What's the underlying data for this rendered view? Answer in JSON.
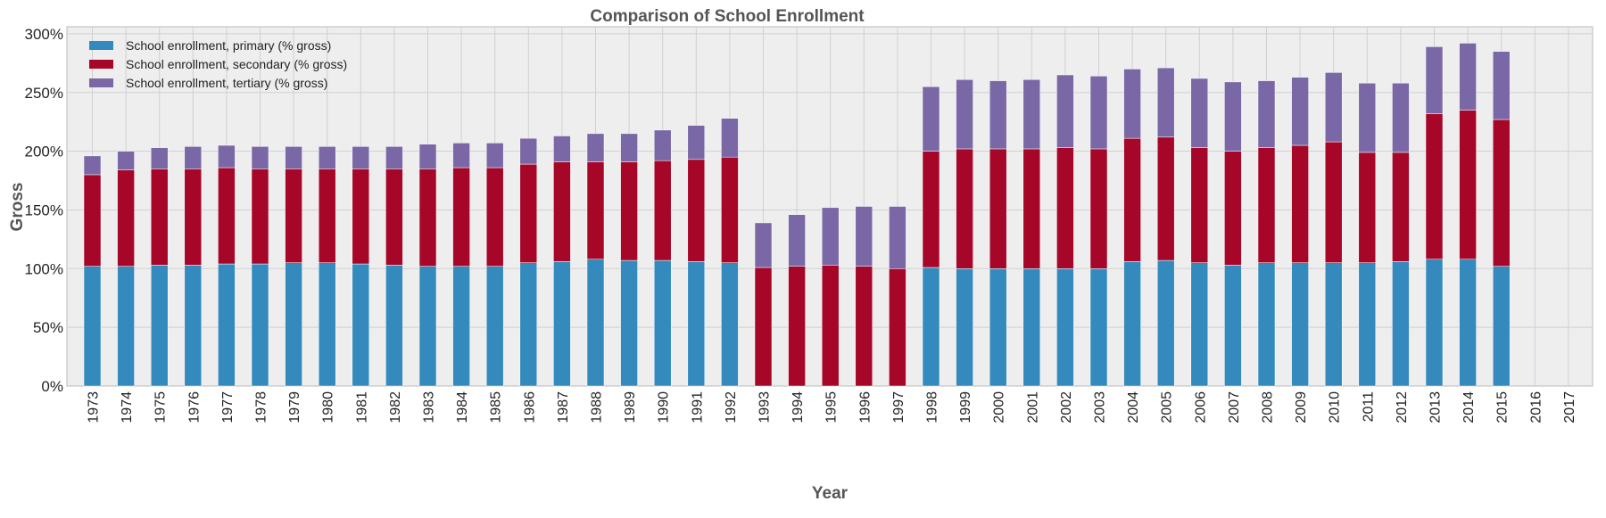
{
  "chart_data": {
    "type": "bar",
    "stacked": true,
    "title": "Comparison of School Enrollment",
    "xlabel": "Year",
    "ylabel": "Gross",
    "ylim": [
      0,
      306
    ],
    "yticks": [
      0,
      50,
      100,
      150,
      200,
      250,
      300
    ],
    "ytick_suffix": "%",
    "grid": true,
    "legend_position": "top-left",
    "categories": [
      "1973",
      "1974",
      "1975",
      "1976",
      "1977",
      "1978",
      "1979",
      "1980",
      "1981",
      "1982",
      "1983",
      "1984",
      "1985",
      "1986",
      "1987",
      "1988",
      "1989",
      "1990",
      "1991",
      "1992",
      "1993",
      "1994",
      "1995",
      "1996",
      "1997",
      "1998",
      "1999",
      "2000",
      "2001",
      "2002",
      "2003",
      "2004",
      "2005",
      "2006",
      "2007",
      "2008",
      "2009",
      "2010",
      "2011",
      "2012",
      "2013",
      "2014",
      "2015",
      "2016",
      "2017"
    ],
    "series": [
      {
        "name": "School enrollment, primary (% gross)",
        "color": "#348ABD",
        "values": [
          102,
          102,
          103,
          103,
          104,
          104,
          105,
          105,
          104,
          103,
          102,
          102,
          102,
          105,
          106,
          108,
          107,
          107,
          106,
          105,
          0,
          0,
          0,
          0,
          0,
          101,
          100,
          100,
          100,
          100,
          100,
          106,
          107,
          105,
          103,
          105,
          105,
          105,
          105,
          106,
          108,
          108,
          102,
          0,
          0
        ]
      },
      {
        "name": "School enrollment, secondary (% gross)",
        "color": "#A60628",
        "values": [
          78,
          82,
          82,
          82,
          82,
          81,
          80,
          80,
          81,
          82,
          83,
          84,
          84,
          84,
          85,
          83,
          84,
          85,
          87,
          90,
          101,
          102,
          103,
          102,
          100,
          99,
          102,
          102,
          102,
          103,
          102,
          105,
          105,
          98,
          97,
          98,
          100,
          103,
          94,
          93,
          124,
          127,
          125,
          0,
          0
        ]
      },
      {
        "name": "School enrollment, tertiary (% gross)",
        "color": "#7A68A6",
        "values": [
          16,
          16,
          18,
          19,
          19,
          19,
          19,
          19,
          19,
          19,
          21,
          21,
          21,
          22,
          22,
          24,
          24,
          26,
          29,
          33,
          38,
          44,
          49,
          51,
          53,
          55,
          59,
          58,
          59,
          62,
          62,
          59,
          59,
          59,
          59,
          57,
          58,
          59,
          59,
          59,
          57,
          57,
          58,
          0,
          0
        ]
      }
    ]
  }
}
